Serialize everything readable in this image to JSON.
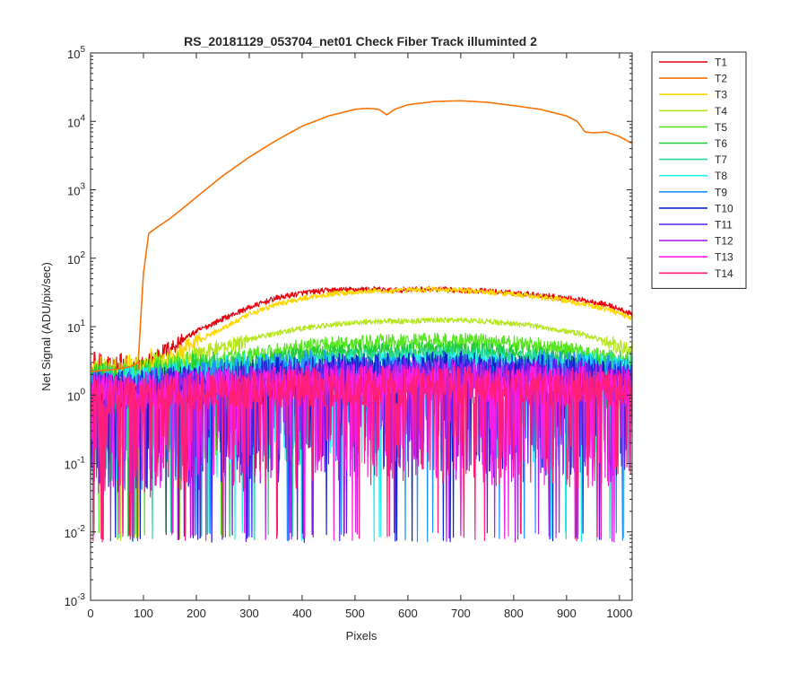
{
  "chart_data": {
    "type": "line",
    "title": "RS_20181129_053704_net01   Check Fiber     Track illuminted 2",
    "xlabel": "Pixels",
    "ylabel": "Net Signal (ADU/pix/sec)",
    "xlim": [
      0,
      1024
    ],
    "ylim": [
      0.001,
      100000
    ],
    "yscale": "log",
    "grid": false,
    "legend_position": "outside-top-right",
    "x_ticks": [
      0,
      100,
      200,
      300,
      400,
      500,
      600,
      700,
      800,
      900,
      1000
    ],
    "x_tick_labels": [
      "0",
      "100",
      "200",
      "300",
      "400",
      "500",
      "600",
      "700",
      "800",
      "900",
      "1000"
    ],
    "y_ticks": [
      0.001,
      0.01,
      0.1,
      1,
      10,
      100,
      1000,
      10000,
      100000
    ],
    "y_tick_labels": [
      {
        "base": "10",
        "exp": "-3"
      },
      {
        "base": "10",
        "exp": "-2"
      },
      {
        "base": "10",
        "exp": "-1"
      },
      {
        "base": "10",
        "exp": "0"
      },
      {
        "base": "10",
        "exp": "1"
      },
      {
        "base": "10",
        "exp": "2"
      },
      {
        "base": "10",
        "exp": "3"
      },
      {
        "base": "10",
        "exp": "4"
      },
      {
        "base": "10",
        "exp": "5"
      }
    ],
    "x": [
      0,
      25,
      50,
      75,
      90,
      100,
      110,
      125,
      150,
      175,
      200,
      250,
      300,
      350,
      400,
      450,
      500,
      525,
      545,
      560,
      575,
      600,
      650,
      700,
      750,
      800,
      850,
      900,
      920,
      935,
      950,
      975,
      1000,
      1023
    ],
    "series": [
      {
        "name": "T1",
        "color": "#e8000b",
        "values": [
          2.4,
          2.2,
          2.3,
          2.4,
          2.5,
          2.8,
          3.2,
          3.8,
          4.8,
          6.5,
          8.5,
          13,
          19,
          26,
          31,
          34,
          35,
          35,
          35,
          34,
          34,
          35,
          35,
          34,
          33,
          31,
          29,
          26,
          25,
          24,
          23,
          21,
          18,
          15
        ]
      },
      {
        "name": "T2",
        "color": "#f97306",
        "values": [
          2.2,
          2.3,
          2.4,
          2.6,
          3.0,
          60,
          230,
          280,
          380,
          540,
          780,
          1600,
          3000,
          5200,
          8500,
          12000,
          15000,
          15500,
          15000,
          12500,
          15000,
          17500,
          19500,
          20000,
          19000,
          17000,
          15000,
          12000,
          10000,
          7000,
          6800,
          7000,
          6000,
          4800
        ]
      },
      {
        "name": "T3",
        "color": "#ffd700",
        "values": [
          2.0,
          1.9,
          2.0,
          2.1,
          2.1,
          2.2,
          2.4,
          2.8,
          3.4,
          4.5,
          6.0,
          9.5,
          15,
          21,
          26,
          30,
          32,
          33,
          33,
          33,
          33,
          34,
          35,
          34,
          32,
          30,
          27,
          24,
          22,
          21,
          20,
          18,
          16,
          13
        ]
      },
      {
        "name": "T4",
        "color": "#b5e61d",
        "values": [
          1.8,
          1.8,
          1.9,
          1.9,
          2.0,
          2.0,
          2.1,
          2.3,
          2.7,
          3.2,
          3.8,
          5.0,
          6.5,
          8.0,
          9.5,
          10.5,
          11.5,
          11.8,
          12,
          12,
          12,
          12,
          12.5,
          12.5,
          12,
          11,
          10,
          8.5,
          8,
          7.5,
          7,
          6,
          5,
          4.5
        ]
      },
      {
        "name": "T5",
        "color": "#55e61d",
        "values": [
          1.6,
          1.6,
          1.7,
          1.7,
          1.7,
          1.8,
          1.8,
          1.9,
          2.1,
          2.3,
          2.6,
          3.2,
          3.8,
          4.4,
          5.0,
          5.4,
          5.7,
          5.8,
          5.9,
          5.9,
          5.9,
          6.0,
          6.1,
          6.1,
          6.0,
          5.6,
          5.2,
          4.6,
          4.4,
          4.2,
          4.0,
          3.6,
          3.2,
          2.8
        ]
      },
      {
        "name": "T6",
        "color": "#1ecb3a",
        "values": [
          1.5,
          1.5,
          1.5,
          1.5,
          1.6,
          1.6,
          1.6,
          1.7,
          1.8,
          2.0,
          2.2,
          2.6,
          3.0,
          3.4,
          3.8,
          4.1,
          4.3,
          4.4,
          4.4,
          4.4,
          4.4,
          4.5,
          4.6,
          4.6,
          4.5,
          4.2,
          3.9,
          3.5,
          3.3,
          3.2,
          3.0,
          2.8,
          2.5,
          2.3
        ]
      },
      {
        "name": "T7",
        "color": "#26d9a0",
        "values": [
          1.4,
          1.4,
          1.4,
          1.4,
          1.5,
          1.5,
          1.5,
          1.6,
          1.7,
          1.8,
          1.9,
          2.2,
          2.5,
          2.8,
          3.1,
          3.3,
          3.5,
          3.6,
          3.6,
          3.6,
          3.6,
          3.7,
          3.8,
          3.8,
          3.7,
          3.5,
          3.3,
          3.0,
          2.9,
          2.8,
          2.7,
          2.5,
          2.3,
          2.1
        ]
      },
      {
        "name": "T8",
        "color": "#22eeee",
        "values": [
          1.3,
          1.3,
          1.3,
          1.4,
          1.4,
          1.4,
          1.4,
          1.5,
          1.6,
          1.7,
          1.8,
          2.0,
          2.2,
          2.5,
          2.7,
          2.9,
          3.0,
          3.1,
          3.1,
          3.1,
          3.1,
          3.2,
          3.2,
          3.2,
          3.1,
          3.0,
          2.8,
          2.6,
          2.5,
          2.4,
          2.3,
          2.2,
          2.0,
          1.9
        ]
      },
      {
        "name": "T9",
        "color": "#1e90ff",
        "values": [
          1.3,
          1.3,
          1.3,
          1.3,
          1.3,
          1.3,
          1.4,
          1.4,
          1.5,
          1.5,
          1.6,
          1.8,
          2.0,
          2.2,
          2.4,
          2.5,
          2.6,
          2.7,
          2.7,
          2.7,
          2.7,
          2.7,
          2.8,
          2.8,
          2.7,
          2.6,
          2.5,
          2.3,
          2.2,
          2.2,
          2.1,
          2.0,
          1.9,
          1.8
        ]
      },
      {
        "name": "T10",
        "color": "#0b24c9",
        "values": [
          1.2,
          1.2,
          1.2,
          1.2,
          1.2,
          1.3,
          1.3,
          1.3,
          1.4,
          1.4,
          1.5,
          1.6,
          1.8,
          1.9,
          2.0,
          2.1,
          2.2,
          2.2,
          2.2,
          2.2,
          2.2,
          2.3,
          2.3,
          2.3,
          2.2,
          2.2,
          2.1,
          2.0,
          1.9,
          1.9,
          1.8,
          1.8,
          1.7,
          1.6
        ]
      },
      {
        "name": "T11",
        "color": "#5a1ee6",
        "values": [
          1.2,
          1.2,
          1.2,
          1.2,
          1.2,
          1.2,
          1.2,
          1.3,
          1.3,
          1.3,
          1.4,
          1.5,
          1.6,
          1.7,
          1.8,
          1.9,
          1.9,
          2.0,
          2.0,
          2.0,
          2.0,
          2.0,
          2.0,
          2.0,
          2.0,
          1.9,
          1.9,
          1.8,
          1.8,
          1.7,
          1.7,
          1.6,
          1.6,
          1.5
        ]
      },
      {
        "name": "T12",
        "color": "#b41ee6",
        "values": [
          1.1,
          1.1,
          1.1,
          1.1,
          1.1,
          1.1,
          1.2,
          1.2,
          1.2,
          1.3,
          1.3,
          1.4,
          1.5,
          1.5,
          1.6,
          1.7,
          1.7,
          1.7,
          1.7,
          1.7,
          1.7,
          1.8,
          1.8,
          1.8,
          1.7,
          1.7,
          1.7,
          1.6,
          1.6,
          1.6,
          1.5,
          1.5,
          1.4,
          1.4
        ]
      },
      {
        "name": "T13",
        "color": "#ff1ee6",
        "values": [
          1.1,
          1.1,
          1.1,
          1.1,
          1.1,
          1.1,
          1.1,
          1.1,
          1.2,
          1.2,
          1.2,
          1.3,
          1.3,
          1.4,
          1.4,
          1.5,
          1.5,
          1.5,
          1.5,
          1.5,
          1.5,
          1.6,
          1.6,
          1.6,
          1.5,
          1.5,
          1.5,
          1.4,
          1.4,
          1.4,
          1.4,
          1.3,
          1.3,
          1.3
        ]
      },
      {
        "name": "T14",
        "color": "#ff1e78",
        "values": [
          1.0,
          1.0,
          1.0,
          1.0,
          1.0,
          1.0,
          1.0,
          1.1,
          1.1,
          1.1,
          1.1,
          1.2,
          1.2,
          1.2,
          1.3,
          1.3,
          1.3,
          1.3,
          1.3,
          1.3,
          1.3,
          1.4,
          1.4,
          1.4,
          1.3,
          1.3,
          1.3,
          1.3,
          1.3,
          1.2,
          1.2,
          1.2,
          1.2,
          1.2
        ]
      }
    ]
  }
}
